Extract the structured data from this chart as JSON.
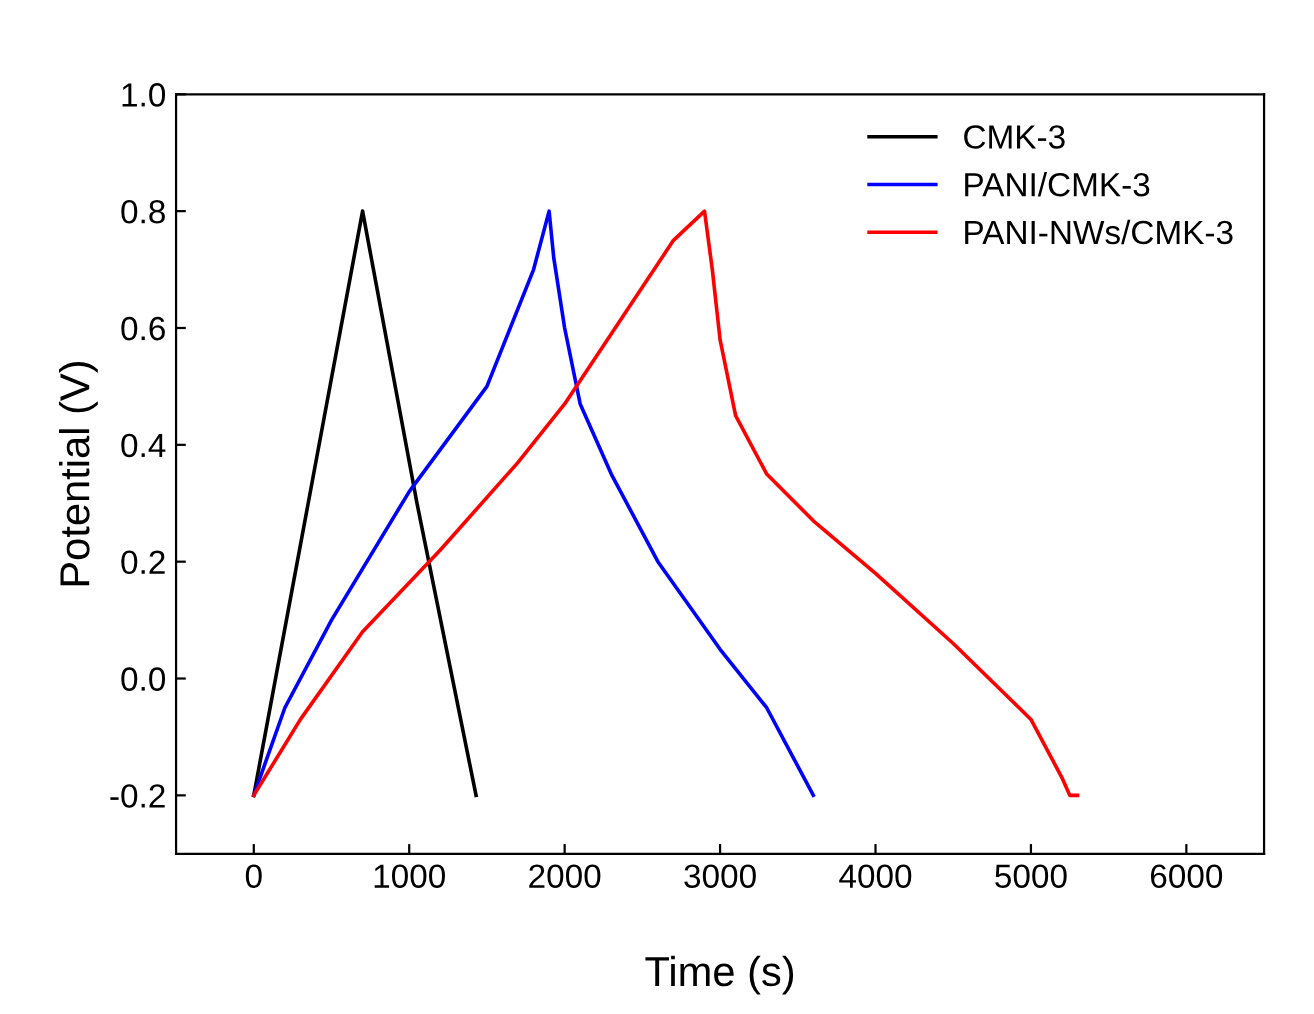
{
  "chart_data": {
    "type": "line",
    "xlabel": "Time (s)",
    "ylabel": "Potential (V)",
    "xlim": [
      -500,
      6500
    ],
    "xticks": [
      0,
      1000,
      2000,
      3000,
      4000,
      5000,
      6000
    ],
    "ylim": [
      -0.3,
      1.0
    ],
    "yticks": [
      {
        "value": -0.2,
        "label": "-0.2"
      },
      {
        "value": 0.0,
        "label": "0.0"
      },
      {
        "value": 0.2,
        "label": "0.2"
      },
      {
        "value": 0.4,
        "label": "0.4"
      },
      {
        "value": 0.6,
        "label": "0.6"
      },
      {
        "value": 0.8,
        "label": "0.8"
      },
      {
        "value": 1.0,
        "label": "1.0"
      }
    ],
    "grid": false,
    "legend": "top right",
    "line_style": "solid",
    "marker": "none",
    "series": [
      {
        "name": "CMK-3",
        "color": "#000000",
        "x": [
          0,
          350,
          700,
          1050,
          1430
        ],
        "values": [
          -0.2,
          0.3,
          0.8,
          0.3,
          -0.2
        ]
      },
      {
        "name": "PANI/CMK-3",
        "color": "#0000ff",
        "x": [
          0,
          200,
          500,
          1000,
          1500,
          1800,
          1900,
          1930,
          2000,
          2100,
          2300,
          2600,
          3000,
          3300,
          3600
        ],
        "values": [
          -0.2,
          -0.05,
          0.1,
          0.32,
          0.5,
          0.7,
          0.8,
          0.72,
          0.6,
          0.47,
          0.35,
          0.2,
          0.05,
          -0.05,
          -0.2
        ]
      },
      {
        "name": "PANI-NWs/CMK-3",
        "color": "#ff0000",
        "x": [
          0,
          300,
          700,
          1200,
          1700,
          2000,
          2400,
          2700,
          2900,
          2950,
          3000,
          3100,
          3300,
          3600,
          4000,
          4500,
          5000,
          5200,
          5250,
          5300
        ],
        "values": [
          -0.2,
          -0.07,
          0.08,
          0.22,
          0.37,
          0.47,
          0.63,
          0.75,
          0.8,
          0.7,
          0.58,
          0.45,
          0.35,
          0.27,
          0.18,
          0.06,
          -0.07,
          -0.17,
          -0.2,
          -0.2
        ]
      }
    ]
  }
}
